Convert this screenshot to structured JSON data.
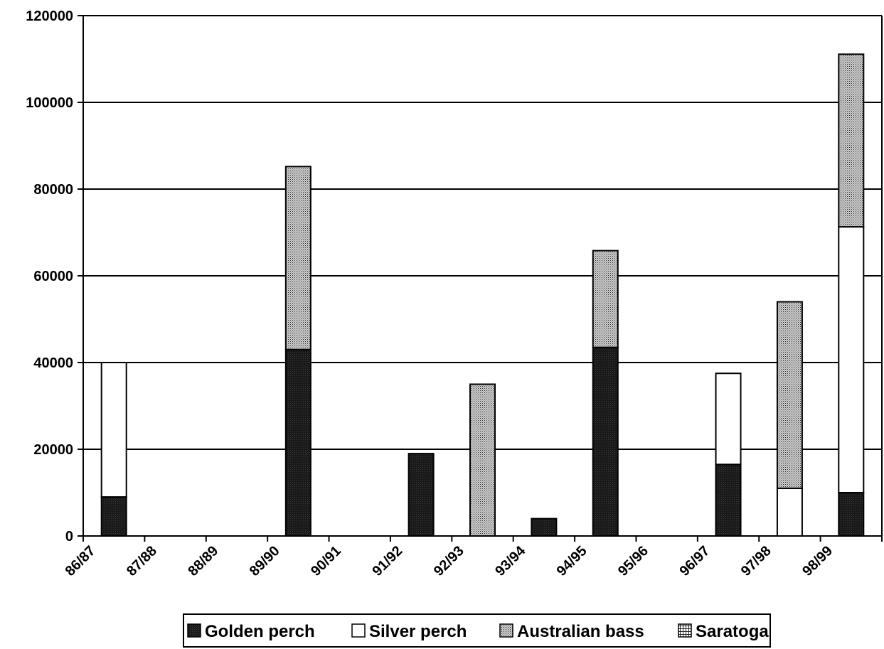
{
  "chart_data": {
    "type": "bar",
    "stacked": true,
    "categories": [
      "86/87",
      "87/88",
      "88/89",
      "89/90",
      "90/91",
      "91/92",
      "92/93",
      "93/94",
      "94/95",
      "95/96",
      "96/97",
      "97/98",
      "98/99"
    ],
    "series": [
      {
        "name": "Golden perch",
        "values": [
          9000,
          0,
          0,
          43000,
          0,
          19000,
          0,
          4000,
          43500,
          0,
          16500,
          0,
          10000
        ]
      },
      {
        "name": "Silver perch",
        "values": [
          31000,
          0,
          0,
          0,
          0,
          0,
          0,
          0,
          0,
          0,
          21000,
          11000,
          61300
        ]
      },
      {
        "name": "Australian bass",
        "values": [
          0,
          0,
          0,
          42200,
          0,
          0,
          35000,
          0,
          22300,
          0,
          0,
          43000,
          39800
        ]
      },
      {
        "name": "Saratoga",
        "values": [
          0,
          0,
          0,
          0,
          0,
          0,
          0,
          0,
          0,
          0,
          0,
          0,
          0
        ]
      }
    ],
    "yticks": [
      "0",
      "20000",
      "40000",
      "60000",
      "80000",
      "100000",
      "120000"
    ],
    "ylim": [
      0,
      120000
    ],
    "grid": true,
    "legend_position": "bottom"
  },
  "colors": {
    "golden_perch": "#1a1a1a",
    "silver_perch": "#ffffff",
    "australian_bass": "#9a9a9a",
    "saratoga": "#d8d8d8"
  }
}
